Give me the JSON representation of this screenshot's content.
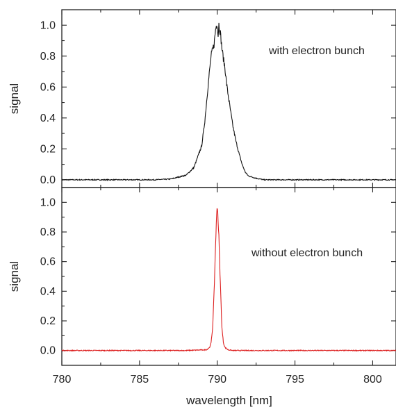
{
  "chart_data": [
    {
      "type": "line",
      "panel": "top",
      "ylabel": "signal",
      "xlim": [
        780,
        801.5
      ],
      "ylim": [
        -0.05,
        1.1
      ],
      "yticks": [
        0.0,
        0.2,
        0.4,
        0.6,
        0.8,
        1.0
      ],
      "ytick_labels": [
        "0.0",
        "0.2",
        "0.4",
        "0.6",
        "0.8",
        "1.0"
      ],
      "annotation": "with electron bunch",
      "grid": false,
      "series": [
        {
          "color": "#111111",
          "x": [
            780,
            786,
            787,
            788,
            788.5,
            789,
            789.2,
            789.4,
            789.6,
            789.8,
            789.9,
            790.0,
            790.05,
            790.1,
            790.2,
            790.3,
            790.4,
            790.5,
            790.6,
            790.8,
            791.0,
            791.2,
            791.4,
            791.6,
            791.8,
            792.0,
            792.5,
            793,
            795,
            801.5
          ],
          "y": [
            0.0,
            0.0,
            0.005,
            0.03,
            0.08,
            0.22,
            0.38,
            0.6,
            0.8,
            0.88,
            0.98,
            1.02,
            0.92,
            1.01,
            0.95,
            0.85,
            0.78,
            0.72,
            0.62,
            0.48,
            0.35,
            0.25,
            0.17,
            0.1,
            0.05,
            0.025,
            0.01,
            0.0,
            0.0,
            0.0
          ]
        }
      ]
    },
    {
      "type": "line",
      "panel": "bottom",
      "ylabel": "signal",
      "xlabel": "wavelength [nm]",
      "xlim": [
        780,
        801.5
      ],
      "ylim": [
        -0.1,
        1.1
      ],
      "xticks": [
        780,
        785,
        790,
        795,
        800
      ],
      "xtick_labels": [
        "780",
        "785",
        "790",
        "795",
        "800"
      ],
      "yticks": [
        0.0,
        0.2,
        0.4,
        0.6,
        0.8,
        1.0
      ],
      "ytick_labels": [
        "0.0",
        "0.2",
        "0.4",
        "0.6",
        "0.8",
        "1.0"
      ],
      "annotation": "without electron bunch",
      "grid": false,
      "series": [
        {
          "color": "#dd2020",
          "x": [
            780,
            788,
            789.3,
            789.5,
            789.6,
            789.7,
            789.8,
            789.9,
            790.0,
            790.1,
            790.2,
            790.3,
            790.4,
            790.5,
            790.7,
            791,
            792,
            801.5
          ],
          "y": [
            0.0,
            0.0,
            0.005,
            0.02,
            0.05,
            0.15,
            0.4,
            0.75,
            1.0,
            0.78,
            0.45,
            0.15,
            0.05,
            0.02,
            0.005,
            0.0,
            0.0,
            0.0
          ]
        }
      ]
    }
  ]
}
